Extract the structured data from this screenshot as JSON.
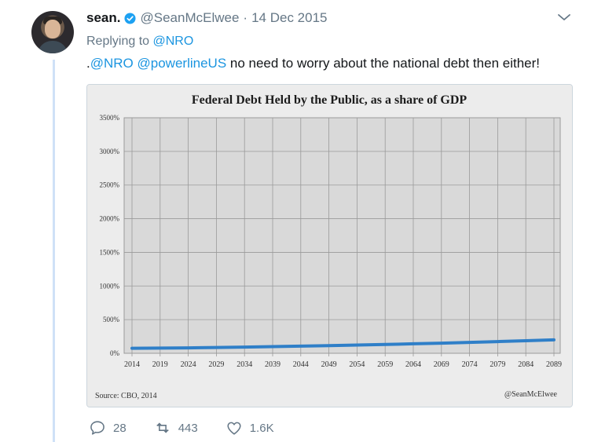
{
  "tweet": {
    "author_name": "sean.",
    "handle": "@SeanMcElwee",
    "separator": "·",
    "date": "14 Dec 2015",
    "replying_prefix": "Replying to ",
    "replying_to": "@NRO",
    "text_prefix": ".",
    "mention_1": "@NRO",
    "mention_2": "@powerlineUS",
    "text_body": " no need to worry about the national debt then either!",
    "actions": {
      "replies": "28",
      "retweets": "443",
      "likes": "1.6K"
    }
  },
  "colors": {
    "link": "#1b95e0",
    "muted": "#657786",
    "thread": "#cfe1f7",
    "series": "#2f7fc8"
  },
  "icons": [
    "verified-badge-icon",
    "chevron-down-icon",
    "reply-icon",
    "retweet-icon",
    "like-icon"
  ],
  "chart_data": {
    "type": "line",
    "title": "Federal Debt Held by the Public, as a share of GDP",
    "x": [
      2014,
      2019,
      2024,
      2029,
      2034,
      2039,
      2044,
      2049,
      2054,
      2059,
      2064,
      2069,
      2074,
      2079,
      2084,
      2089
    ],
    "series": [
      {
        "name": "",
        "values": [
          75,
          77,
          80,
          86,
          92,
          99,
          106,
          114,
          122,
          131,
          141,
          151,
          162,
          174,
          187,
          200
        ]
      }
    ],
    "y_ticks": [
      "0%",
      "500%",
      "1000%",
      "1500%",
      "2000%",
      "2500%",
      "3000%",
      "3500%"
    ],
    "ylim": [
      0,
      3500
    ],
    "grid": true,
    "source": "Source: CBO, 2014",
    "watermark": "@SeanMcElwee"
  }
}
